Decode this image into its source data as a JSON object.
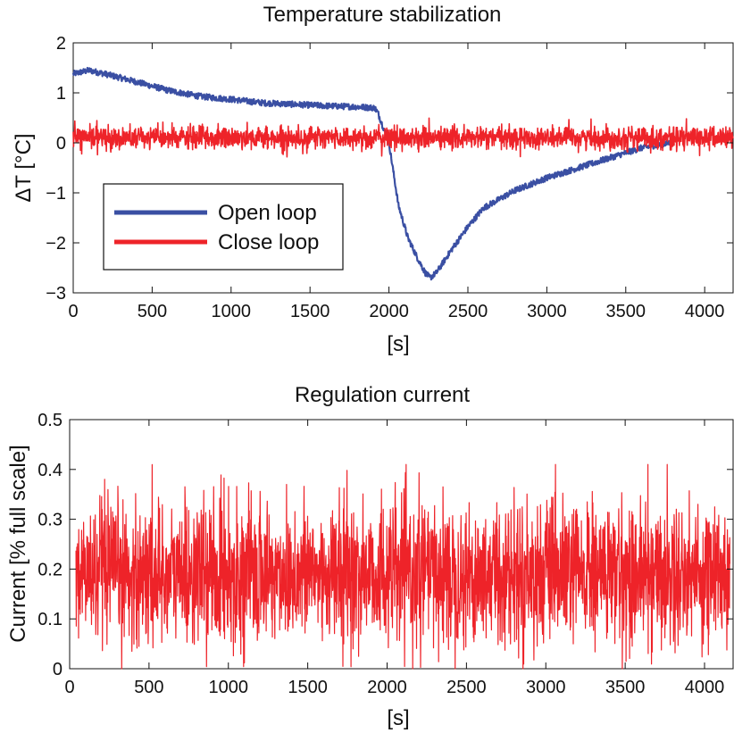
{
  "chart_data": [
    {
      "type": "line",
      "title": "Temperature stabilization",
      "xlabel": "[s]",
      "ylabel": "ΔT [°C]",
      "xlim": [
        0,
        4180
      ],
      "ylim": [
        -3,
        2
      ],
      "xticks": [
        0,
        500,
        1000,
        1500,
        2000,
        2500,
        3000,
        3500,
        4000
      ],
      "xtick_labels": [
        "0",
        "500",
        "1000",
        "1500",
        "2000",
        "2500",
        "3000",
        "3500",
        "4000"
      ],
      "yticks": [
        2,
        1,
        0,
        -1,
        -2,
        -3
      ],
      "ytick_labels": [
        "2",
        "1",
        "0",
        "−1",
        "−2",
        "−3"
      ],
      "grid": false,
      "legend": {
        "placement": "lower-left",
        "entries": [
          "Open loop",
          "Close loop"
        ]
      },
      "series": [
        {
          "name": "Open loop",
          "color": "#3a4fa3",
          "noise": 0.06,
          "x": [
            0,
            100,
            200,
            400,
            600,
            800,
            1000,
            1200,
            1400,
            1600,
            1800,
            1910,
            1930,
            2000,
            2060,
            2120,
            2180,
            2230,
            2260,
            2300,
            2400,
            2500,
            2600,
            2800,
            3000,
            3200,
            3400,
            3600,
            3780
          ],
          "y": [
            1.38,
            1.45,
            1.38,
            1.22,
            1.05,
            0.93,
            0.87,
            0.8,
            0.77,
            0.74,
            0.72,
            0.7,
            0.6,
            0.0,
            -1.25,
            -1.9,
            -2.3,
            -2.6,
            -2.7,
            -2.6,
            -2.12,
            -1.68,
            -1.3,
            -0.95,
            -0.7,
            -0.5,
            -0.3,
            -0.1,
            0.0
          ]
        },
        {
          "name": "Close loop",
          "color": "#ee2329",
          "mean": 0.1,
          "noise": 0.15,
          "x": [
            0,
            4180
          ],
          "y": [
            0.1,
            0.1
          ]
        }
      ]
    },
    {
      "type": "line",
      "title": "Regulation current",
      "xlabel": "[s]",
      "ylabel": "Current [% full scale]",
      "xlim": [
        0,
        4180
      ],
      "ylim": [
        0,
        0.5
      ],
      "xticks": [
        0,
        500,
        1000,
        1500,
        2000,
        2500,
        3000,
        3500,
        4000
      ],
      "xtick_labels": [
        "0",
        "500",
        "1000",
        "1500",
        "2000",
        "2500",
        "3000",
        "3500",
        "4000"
      ],
      "yticks": [
        0,
        0.1,
        0.2,
        0.3,
        0.4,
        0.5
      ],
      "ytick_labels": [
        "0",
        "0.1",
        "0.2",
        "0.3",
        "0.4",
        "0.5"
      ],
      "grid": false,
      "series": [
        {
          "name": "Regulation current",
          "color": "#ee2329",
          "mean": 0.19,
          "noise": 0.07,
          "min": 0.0,
          "max": 0.41,
          "x": [
            40,
            4160
          ],
          "y": [
            0.19,
            0.19
          ]
        }
      ]
    }
  ]
}
